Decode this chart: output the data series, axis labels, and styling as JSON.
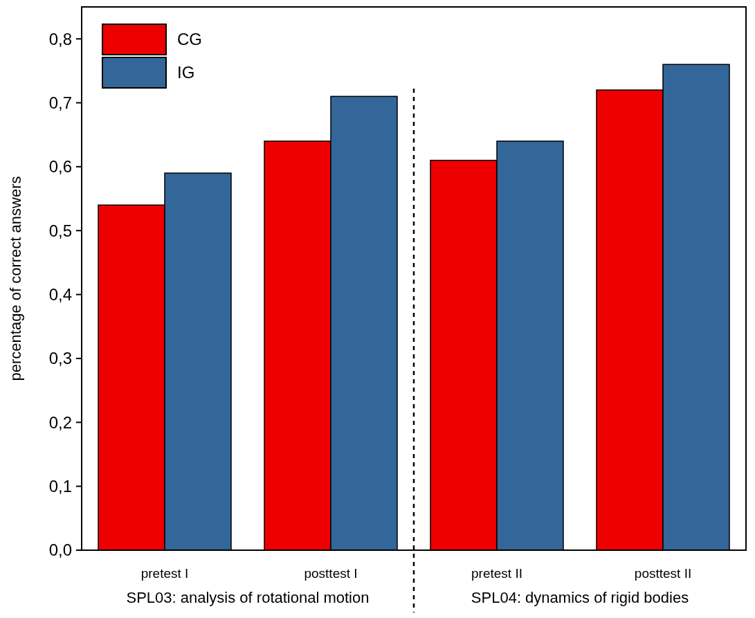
{
  "chart_data": {
    "type": "bar",
    "ylabel": "percentage of correct answers",
    "categories": [
      "pretest I",
      "posttest I",
      "pretest II",
      "posttest II"
    ],
    "series": [
      {
        "name": "CG",
        "color": "#ee0000",
        "values": [
          0.54,
          0.64,
          0.61,
          0.72
        ]
      },
      {
        "name": "IG",
        "color": "#336699",
        "values": [
          0.59,
          0.71,
          0.64,
          0.76
        ]
      }
    ],
    "ylim": [
      0,
      0.85
    ],
    "yticks": [
      {
        "value": 0,
        "label": "0,0"
      },
      {
        "value": 0.1,
        "label": "0,1"
      },
      {
        "value": 0.2,
        "label": "0,2"
      },
      {
        "value": 0.3,
        "label": "0,3"
      },
      {
        "value": 0.4,
        "label": "0,4"
      },
      {
        "value": 0.5,
        "label": "0,5"
      },
      {
        "value": 0.6,
        "label": "0,6"
      },
      {
        "value": 0.7,
        "label": "0,7"
      },
      {
        "value": 0.8,
        "label": "0,8"
      }
    ],
    "annotations": [
      "SPL03: analysis of rotational motion",
      "SPL04: dynamics of rigid bodies"
    ],
    "legend": "top left",
    "grid": false
  }
}
